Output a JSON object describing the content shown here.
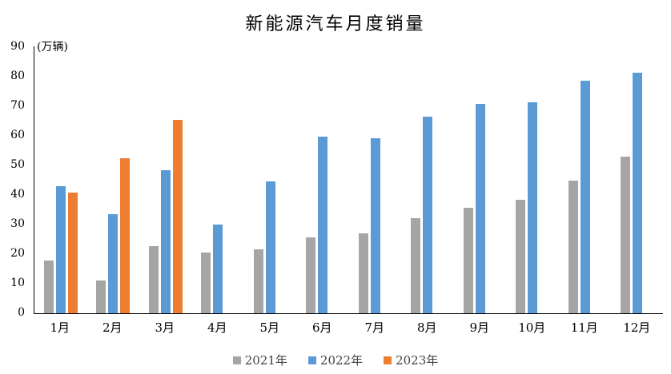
{
  "chart_data": {
    "type": "bar",
    "title": "新能源汽车月度销量",
    "unit_label": "(万辆)",
    "categories": [
      "1月",
      "2月",
      "3月",
      "4月",
      "5月",
      "6月",
      "7月",
      "8月",
      "9月",
      "10月",
      "11月",
      "12月"
    ],
    "series": [
      {
        "name": "2021年",
        "color": "#A5A5A5",
        "values": [
          17.9,
          11.0,
          22.6,
          20.6,
          21.7,
          25.6,
          27.1,
          32.1,
          35.7,
          38.3,
          45.0,
          53.1
        ]
      },
      {
        "name": "2022年",
        "color": "#5B9BD5",
        "values": [
          43.1,
          33.4,
          48.4,
          29.9,
          44.7,
          59.6,
          59.3,
          66.6,
          70.8,
          71.4,
          78.6,
          81.4
        ]
      },
      {
        "name": "2023年",
        "color": "#ED7D31",
        "values": [
          40.8,
          52.5,
          65.3,
          null,
          null,
          null,
          null,
          null,
          null,
          null,
          null,
          null
        ]
      }
    ],
    "yticks": [
      0,
      10,
      20,
      30,
      40,
      50,
      60,
      70,
      80,
      90
    ],
    "ylim": [
      0,
      90
    ],
    "grid": false,
    "legend_position": "bottom"
  }
}
